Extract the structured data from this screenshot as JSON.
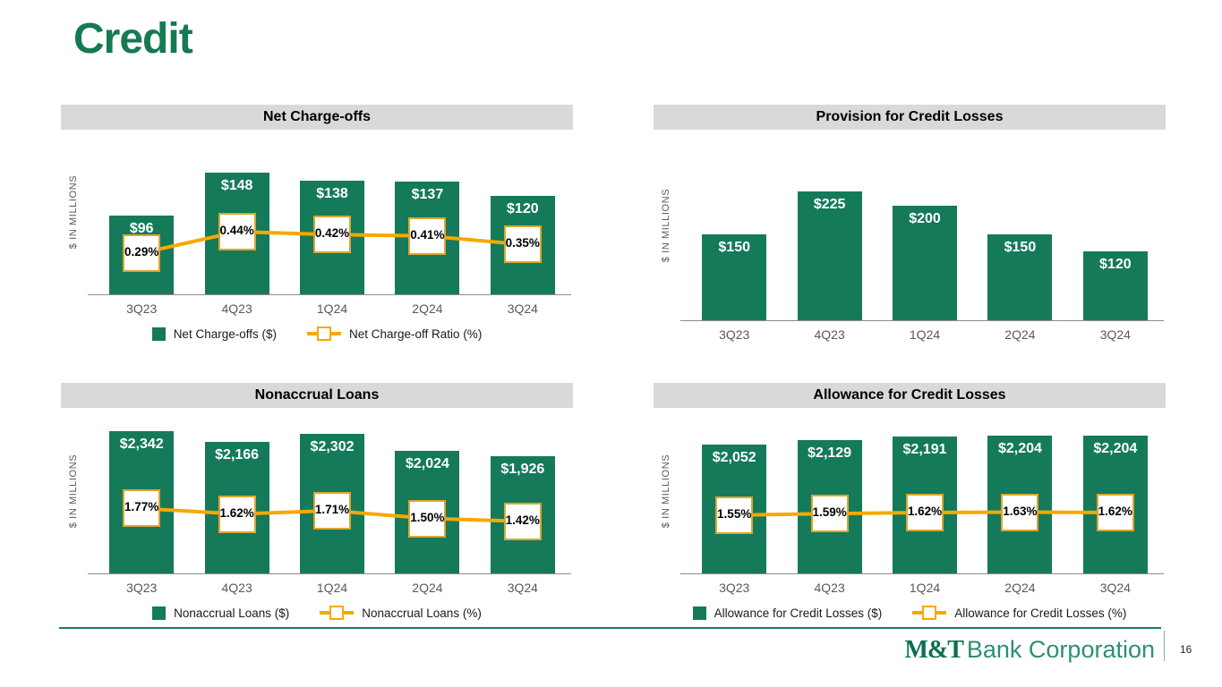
{
  "slide": {
    "title": "Credit"
  },
  "footer": {
    "brand_bold": "M&T",
    "brand_light": "Bank Corporation",
    "page_number": "16"
  },
  "colors": {
    "bar_green": "#147A5A",
    "line_yellow": "#F7A800",
    "marker_border": "#DDA62E",
    "header_bg": "#D9D9D9",
    "title_green": "#157A52",
    "tick_gray": "#595959",
    "axis_gray": "#8C8C8C",
    "footer_line_teal": "#1D7A6E",
    "brand_green_dark": "#0B6E50",
    "brand_green_light": "#2F8E76"
  },
  "chart_data": [
    {
      "type": "bar+line",
      "title": "Net Charge-offs",
      "ylabel": "$ IN MILLIONS",
      "categories": [
        "3Q23",
        "4Q23",
        "1Q24",
        "2Q24",
        "3Q24"
      ],
      "grid": false,
      "legend_position": "bottom",
      "bar_series": {
        "name": "Net Charge-offs ($)",
        "labels": [
          "$96",
          "$148",
          "$138",
          "$137",
          "$120"
        ],
        "values": [
          96,
          148,
          138,
          137,
          120
        ]
      },
      "line_series": {
        "name": "Net Charge-off Ratio (%)",
        "labels": [
          "0.29%",
          "0.44%",
          "0.42%",
          "0.41%",
          "0.35%"
        ],
        "values": [
          0.29,
          0.44,
          0.42,
          0.41,
          0.35
        ]
      }
    },
    {
      "type": "bar",
      "title": "Provision for Credit Losses",
      "ylabel": "$ IN MILLIONS",
      "categories": [
        "3Q23",
        "4Q23",
        "1Q24",
        "2Q24",
        "3Q24"
      ],
      "grid": false,
      "legend_position": "none",
      "bar_series": {
        "name": "Provision for Credit Losses ($)",
        "labels": [
          "$150",
          "$225",
          "$200",
          "$150",
          "$120"
        ],
        "values": [
          150,
          225,
          200,
          150,
          120
        ]
      }
    },
    {
      "type": "bar+line",
      "title": "Nonaccrual Loans",
      "ylabel": "$ IN MILLIONS",
      "categories": [
        "3Q23",
        "4Q23",
        "1Q24",
        "2Q24",
        "3Q24"
      ],
      "grid": false,
      "legend_position": "bottom",
      "bar_series": {
        "name": "Nonaccrual Loans ($)",
        "labels": [
          "$2,342",
          "$2,166",
          "$2,302",
          "$2,024",
          "$1,926"
        ],
        "values": [
          2342,
          2166,
          2302,
          2024,
          1926
        ]
      },
      "line_series": {
        "name": "Nonaccrual Loans (%)",
        "labels": [
          "1.77%",
          "1.62%",
          "1.71%",
          "1.50%",
          "1.42%"
        ],
        "values": [
          1.77,
          1.62,
          1.71,
          1.5,
          1.42
        ]
      }
    },
    {
      "type": "bar+line",
      "title": "Allowance for Credit Losses",
      "ylabel": "$ IN MILLIONS",
      "categories": [
        "3Q23",
        "4Q23",
        "1Q24",
        "2Q24",
        "3Q24"
      ],
      "grid": false,
      "legend_position": "bottom",
      "bar_series": {
        "name": "Allowance for Credit Losses ($)",
        "labels": [
          "$2,052",
          "$2,129",
          "$2,191",
          "$2,204",
          "$2,204"
        ],
        "values": [
          2052,
          2129,
          2191,
          2204,
          2204
        ]
      },
      "line_series": {
        "name": "Allowance for Credit Losses (%)",
        "labels": [
          "1.55%",
          "1.59%",
          "1.62%",
          "1.63%",
          "1.62%"
        ],
        "values": [
          1.55,
          1.59,
          1.62,
          1.63,
          1.62
        ]
      }
    }
  ]
}
